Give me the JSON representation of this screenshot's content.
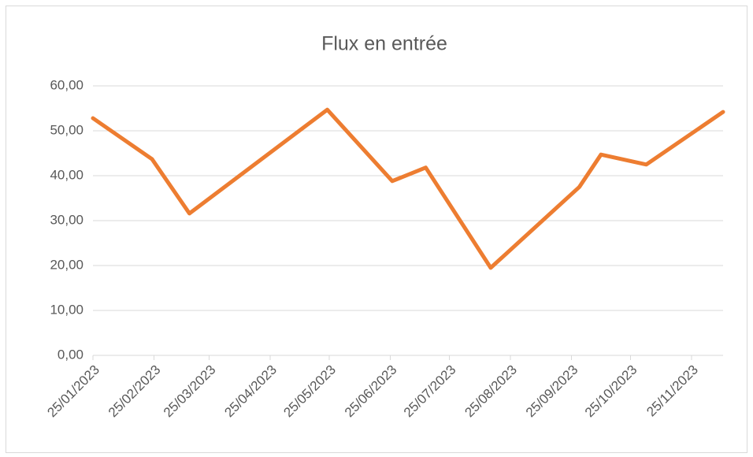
{
  "chart_data": {
    "type": "line",
    "title": "Flux en entrée",
    "x": [
      "25/01/2023",
      "24/02/2023",
      "15/03/2023",
      "24/05/2023",
      "26/06/2023",
      "13/07/2023",
      "15/08/2023",
      "29/09/2023",
      "10/10/2023",
      "02/11/2023",
      "11/12/2023"
    ],
    "series": [
      {
        "name": "Flux en entrée",
        "color": "#ed7d31",
        "values": [
          52.8,
          43.7,
          31.6,
          54.7,
          38.8,
          41.8,
          19.5,
          37.5,
          44.7,
          42.5,
          54.2
        ]
      }
    ],
    "xlim": [
      "25/01/2023",
      "11/12/2023"
    ],
    "xticks": [
      "25/01/2023",
      "25/02/2023",
      "25/03/2023",
      "25/04/2023",
      "25/05/2023",
      "25/06/2023",
      "25/07/2023",
      "25/08/2023",
      "25/09/2023",
      "25/10/2023",
      "25/11/2023"
    ],
    "ylim": [
      0,
      60
    ],
    "yticks": [
      {
        "value": 0,
        "label": "0,00"
      },
      {
        "value": 10,
        "label": "10,00"
      },
      {
        "value": 20,
        "label": "20,00"
      },
      {
        "value": 30,
        "label": "30,00"
      },
      {
        "value": 40,
        "label": "40,00"
      },
      {
        "value": 50,
        "label": "50,00"
      },
      {
        "value": 60,
        "label": "60,00"
      }
    ],
    "grid": true
  }
}
